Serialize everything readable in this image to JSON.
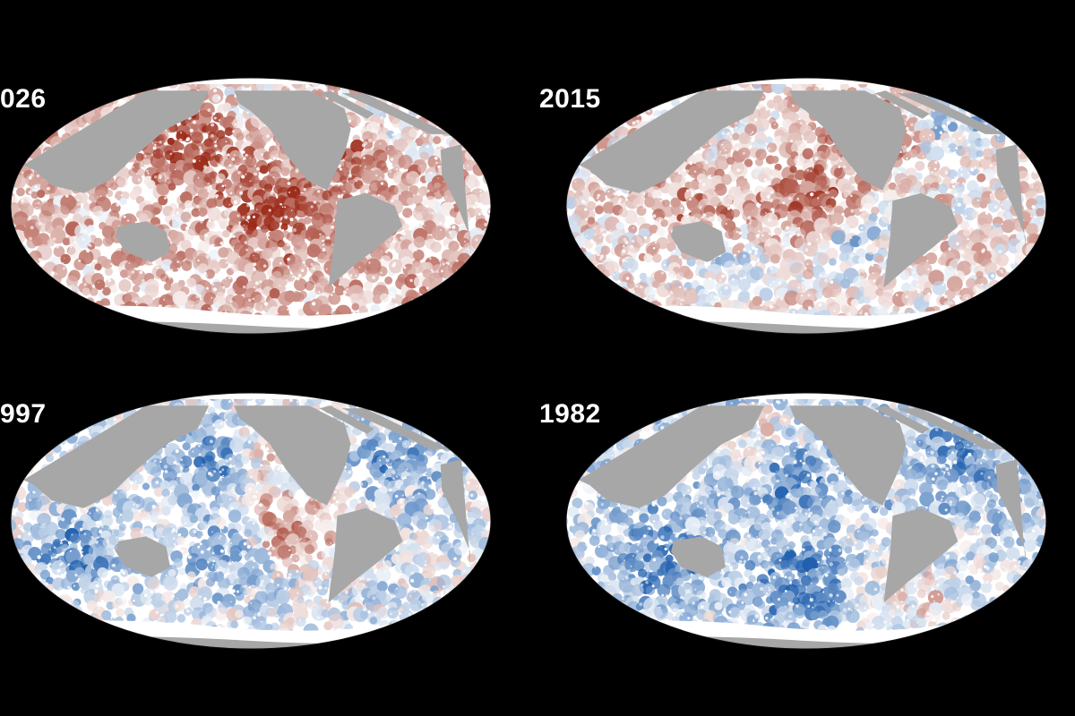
{
  "panels": [
    {
      "label": "026",
      "bias": 0.55,
      "hotspots": [
        [
          0.55,
          0.52,
          0.9
        ],
        [
          0.38,
          0.24,
          0.8
        ],
        [
          0.72,
          0.32,
          0.4
        ]
      ],
      "coldspots": [
        [
          0.78,
          0.2,
          0.4
        ],
        [
          0.48,
          0.12,
          0.3
        ]
      ]
    },
    {
      "label": "2015",
      "bias": 0.25,
      "hotspots": [
        [
          0.5,
          0.46,
          0.8
        ],
        [
          0.62,
          0.22,
          0.7
        ],
        [
          0.28,
          0.52,
          0.5
        ]
      ],
      "coldspots": [
        [
          0.8,
          0.16,
          0.6
        ],
        [
          0.58,
          0.62,
          0.5
        ],
        [
          0.32,
          0.72,
          0.4
        ]
      ]
    },
    {
      "label": "997",
      "bias": -0.25,
      "hotspots": [
        [
          0.58,
          0.52,
          0.8
        ],
        [
          0.52,
          0.22,
          0.5
        ]
      ],
      "coldspots": [
        [
          0.42,
          0.25,
          0.8
        ],
        [
          0.15,
          0.6,
          0.6
        ],
        [
          0.78,
          0.28,
          0.5
        ],
        [
          0.45,
          0.62,
          0.5
        ]
      ]
    },
    {
      "label": "1982",
      "bias": -0.45,
      "hotspots": [
        [
          0.42,
          0.24,
          0.5
        ],
        [
          0.7,
          0.75,
          0.4
        ]
      ],
      "coldspots": [
        [
          0.45,
          0.32,
          0.8
        ],
        [
          0.22,
          0.62,
          0.7
        ],
        [
          0.48,
          0.7,
          0.7
        ],
        [
          0.8,
          0.25,
          0.6
        ]
      ]
    }
  ],
  "colors": {
    "background": "#000000",
    "land": "#a7a7a7",
    "ice": "#ffffff",
    "warm": "#9b2a18",
    "cool": "#1f5fae",
    "neutral": "#ffffff"
  }
}
